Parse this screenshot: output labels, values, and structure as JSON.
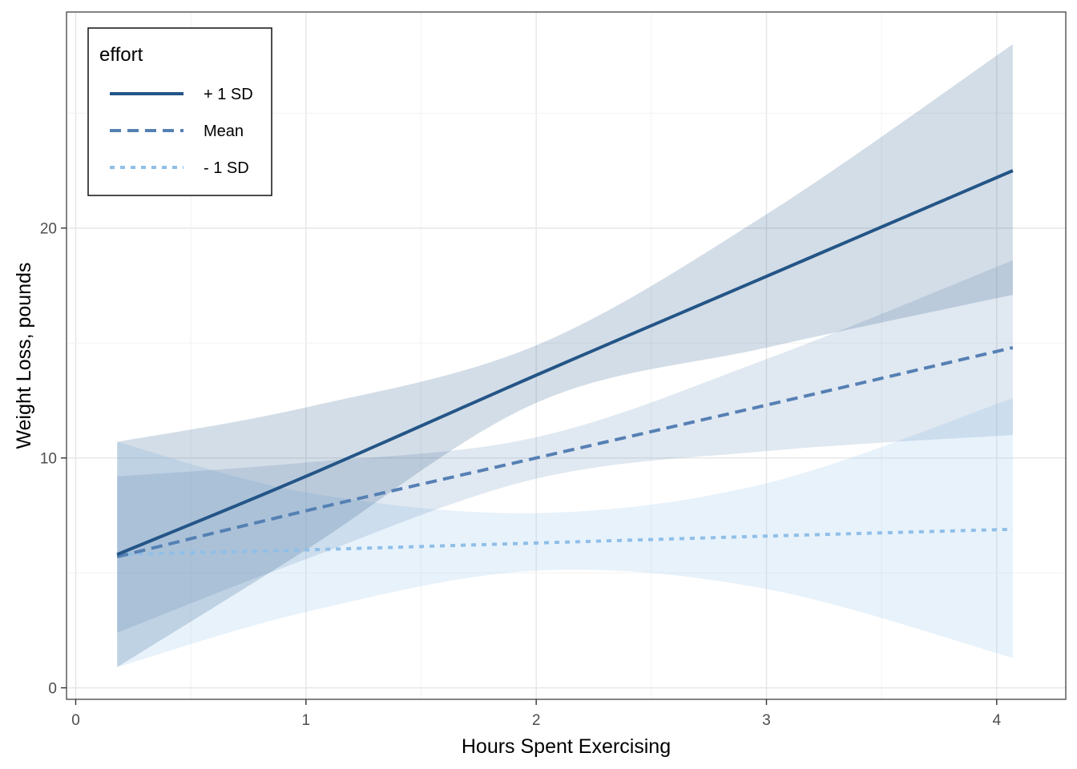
{
  "chart_data": {
    "type": "line",
    "xlabel": "Hours Spent Exercising",
    "ylabel": "Weight Loss, pounds",
    "xlim": [
      -0.04,
      4.3
    ],
    "ylim": [
      -0.5,
      29.4
    ],
    "x_ticks": [
      0,
      1,
      2,
      3,
      4
    ],
    "y_ticks": [
      0,
      10,
      20
    ],
    "grid": true,
    "legend": {
      "title": "effort",
      "position": "top-left"
    },
    "x": [
      0.18,
      1.0,
      2.0,
      3.0,
      4.07
    ],
    "series": [
      {
        "name": "+ 1 SD",
        "color": "#245587",
        "dash": "solid",
        "band_color": "#245587",
        "band_opacity": 0.2,
        "values": [
          5.8,
          9.2,
          13.6,
          17.9,
          22.5
        ],
        "lower": [
          0.9,
          6.0,
          12.4,
          14.8,
          17.1
        ],
        "upper": [
          10.7,
          12.2,
          14.9,
          20.6,
          28.0
        ]
      },
      {
        "name": "Mean",
        "color": "#5580b4",
        "dash": "long-dash",
        "band_color": "#5580b4",
        "band_opacity": 0.18,
        "values": [
          5.7,
          7.7,
          10.0,
          12.3,
          14.8
        ],
        "lower": [
          2.4,
          5.6,
          9.1,
          10.3,
          11.0
        ],
        "upper": [
          9.2,
          9.8,
          10.9,
          14.3,
          18.6
        ]
      },
      {
        "name": "- 1 SD",
        "color": "#8fbfe8",
        "dash": "dotted",
        "band_color": "#a9cff2",
        "band_opacity": 0.28,
        "values": [
          5.8,
          6.0,
          6.3,
          6.6,
          6.9
        ],
        "lower": [
          0.9,
          3.3,
          5.1,
          4.3,
          1.3
        ],
        "upper": [
          10.7,
          8.5,
          7.6,
          8.9,
          12.6
        ]
      }
    ]
  }
}
